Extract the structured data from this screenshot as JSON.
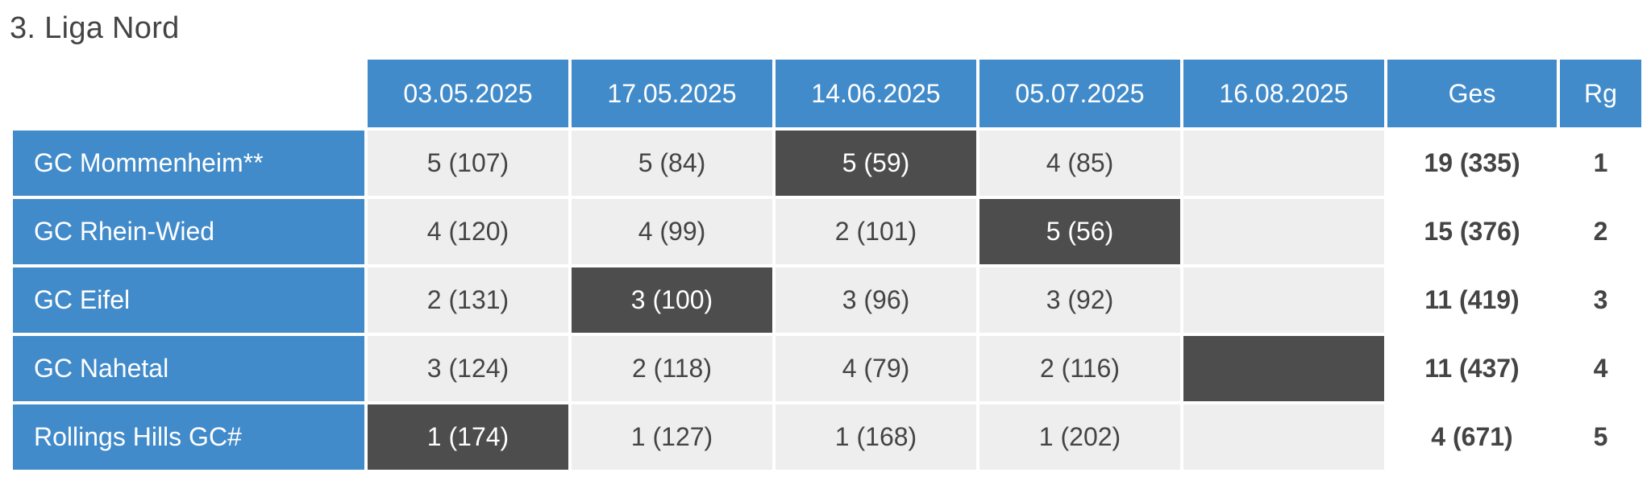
{
  "title": "3. Liga Nord",
  "headers": {
    "dates": [
      "03.05.2025",
      "17.05.2025",
      "14.06.2025",
      "05.07.2025",
      "16.08.2025"
    ],
    "total": "Ges",
    "rank": "Rg"
  },
  "rows": [
    {
      "team": "GC Mommenheim**",
      "scores": [
        "5 (107)",
        "5 (84)",
        "5 (59)",
        "4 (85)",
        ""
      ],
      "dark": [
        false,
        false,
        true,
        false,
        false
      ],
      "total": "19 (335)",
      "rank": "1"
    },
    {
      "team": "GC Rhein-Wied",
      "scores": [
        "4 (120)",
        "4 (99)",
        "2 (101)",
        "5 (56)",
        ""
      ],
      "dark": [
        false,
        false,
        false,
        true,
        false
      ],
      "total": "15 (376)",
      "rank": "2"
    },
    {
      "team": "GC Eifel",
      "scores": [
        "2 (131)",
        "3 (100)",
        "3 (96)",
        "3 (92)",
        ""
      ],
      "dark": [
        false,
        true,
        false,
        false,
        false
      ],
      "total": "11 (419)",
      "rank": "3"
    },
    {
      "team": "GC Nahetal",
      "scores": [
        "3 (124)",
        "2 (118)",
        "4 (79)",
        "2 (116)",
        ""
      ],
      "dark": [
        false,
        false,
        false,
        false,
        true
      ],
      "total": "11 (437)",
      "rank": "4"
    },
    {
      "team": "Rollings Hills GC#",
      "scores": [
        "1 (174)",
        "1 (127)",
        "1 (168)",
        "1 (202)",
        ""
      ],
      "dark": [
        true,
        false,
        false,
        false,
        false
      ],
      "total": "4 (671)",
      "rank": "5"
    }
  ],
  "colors": {
    "header_blue": "#428bca",
    "dark_cell": "#4d4d4d",
    "light_cell": "#eeeeee"
  }
}
